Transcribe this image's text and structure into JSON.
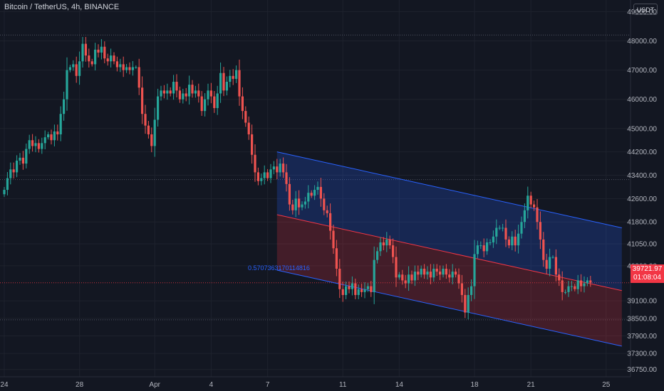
{
  "header": {
    "symbol_line": "Bitcoin / TetherUS, 4h, BINANCE",
    "currency": "USDT"
  },
  "last_price": {
    "value": "39721.97",
    "countdown": "01:08:04",
    "color": "#f23645"
  },
  "channel_ratio_label": "0.5707363170114816",
  "colors": {
    "background": "#131722",
    "grid": "#1e222d",
    "up": "#26a69a",
    "down": "#ef5350",
    "channel_line": "#2962ff",
    "channel_upper_fill": "rgba(41,98,255,0.22)",
    "channel_lower_fill": "rgba(242,54,69,0.22)",
    "axis_text": "#b2b5be"
  },
  "chart_data": {
    "type": "candlestick",
    "title": "Bitcoin / TetherUS, 4h, BINANCE",
    "y_axis": {
      "labels": [
        "49000.00",
        "48000.00",
        "47000.00",
        "46000.00",
        "45000.00",
        "44200.00",
        "43400.00",
        "42600.00",
        "41800.00",
        "41050.00",
        "40300.00",
        "39100.00",
        "38500.00",
        "37900.00",
        "37300.00",
        "36750.00"
      ],
      "range": [
        36500,
        49400
      ],
      "position": "right"
    },
    "x_axis": {
      "labels": [
        {
          "text": "24",
          "bar": 0
        },
        {
          "text": "28",
          "bar": 24
        },
        {
          "text": "Apr",
          "bar": 48
        },
        {
          "text": "4",
          "bar": 66
        },
        {
          "text": "7",
          "bar": 84
        },
        {
          "text": "11",
          "bar": 108
        },
        {
          "text": "14",
          "bar": 126
        },
        {
          "text": "18",
          "bar": 150
        },
        {
          "text": "21",
          "bar": 168
        },
        {
          "text": "25",
          "bar": 192
        }
      ]
    },
    "dotted_levels": [
      48200,
      43250,
      39720,
      38450
    ],
    "channel": {
      "upper_start": {
        "bar": 87,
        "price": 44200
      },
      "upper_end": {
        "bar": 197,
        "price": 41600
      },
      "mid_start": {
        "bar": 87,
        "price": 42050
      },
      "mid_end": {
        "bar": 197,
        "price": 39450
      },
      "lower_start": {
        "bar": 87,
        "price": 40150
      },
      "lower_end": {
        "bar": 197,
        "price": 37550
      }
    },
    "close": [
      42900,
      43300,
      43600,
      43500,
      43900,
      44000,
      43800,
      44300,
      44600,
      44400,
      44500,
      44300,
      44500,
      44700,
      44800,
      44600,
      44900,
      44800,
      45500,
      46000,
      47000,
      47100,
      47200,
      46800,
      47300,
      47900,
      47500,
      47300,
      47200,
      47700,
      47600,
      47800,
      47400,
      47300,
      47500,
      47300,
      47100,
      47200,
      47000,
      47100,
      47000,
      47100,
      47100,
      46400,
      45500,
      45100,
      44800,
      44400,
      45300,
      46100,
      46300,
      46200,
      46300,
      46200,
      46600,
      46300,
      46000,
      46200,
      46100,
      46500,
      46200,
      46300,
      46100,
      45600,
      46000,
      46300,
      46100,
      45700,
      46200,
      46900,
      46300,
      46600,
      46800,
      46700,
      47000,
      46100,
      45600,
      45200,
      44800,
      44100,
      43500,
      43200,
      43300,
      43500,
      43300,
      43600,
      43700,
      43500,
      43800,
      43500,
      43100,
      42400,
      42200,
      42600,
      42300,
      42400,
      42500,
      42800,
      42700,
      42900,
      43000,
      42600,
      42200,
      42100,
      41500,
      40900,
      40200,
      39500,
      39300,
      39600,
      39500,
      39700,
      39300,
      39500,
      39400,
      39500,
      39600,
      39400,
      40500,
      40800,
      41100,
      41000,
      41200,
      41000,
      40600,
      39900,
      40000,
      39800,
      39700,
      40000,
      39800,
      40100,
      40000,
      40200,
      40000,
      40100,
      39900,
      40200,
      40100,
      40000,
      40200,
      40000,
      39900,
      40100,
      40000,
      39700,
      39300,
      38700,
      39300,
      39600,
      40700,
      41000,
      41000,
      40800,
      41100,
      41100,
      41300,
      41600,
      41600,
      41600,
      41200,
      41000,
      41300,
      41000,
      41400,
      41800,
      42200,
      42700,
      42400,
      42300,
      41800,
      41200,
      40500,
      40200,
      40600,
      40600,
      40000,
      39800,
      39400,
      39400,
      39600,
      39600,
      39500,
      39800,
      39600,
      39700,
      39800,
      39720
    ]
  }
}
